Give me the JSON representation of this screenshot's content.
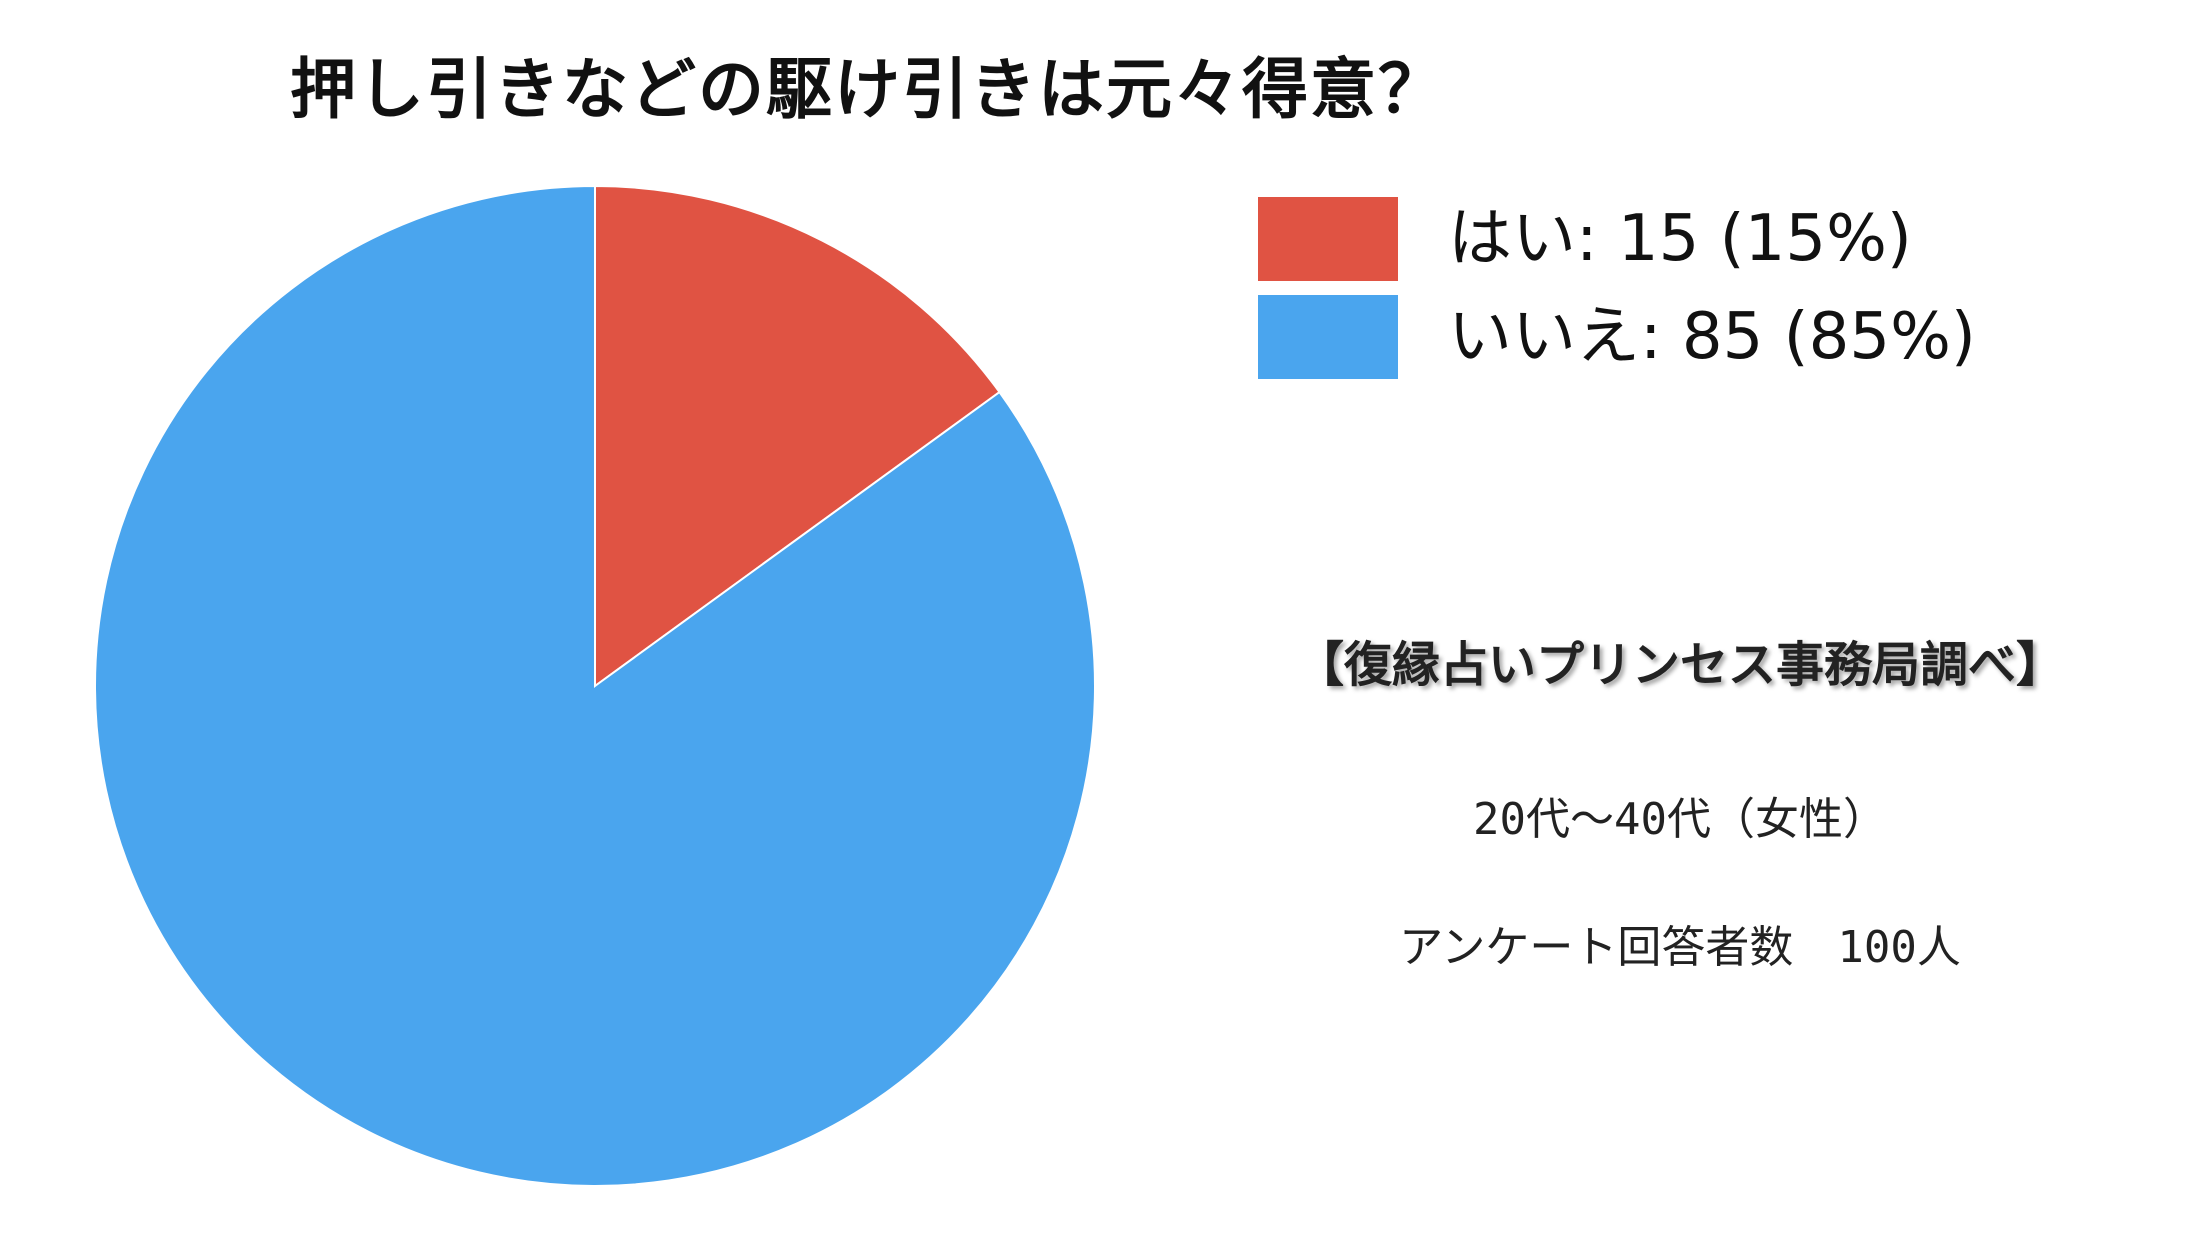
{
  "title": "押し引きなどの駆け引きは元々得意？",
  "chart_data": {
    "type": "pie",
    "title": "押し引きなどの駆け引きは元々得意？",
    "start_angle": "12 o'clock",
    "direction": "clockwise",
    "legend_position": "top-right",
    "slices": [
      {
        "label": "はい",
        "value": 15,
        "percent": 15,
        "color": "#E05343"
      },
      {
        "label": "いいえ",
        "value": 85,
        "percent": 85,
        "color": "#4AA5EE"
      }
    ]
  },
  "legend": [
    {
      "text": "はい: 15 (15%)",
      "color": "#E05343"
    },
    {
      "text": "いいえ: 85 (85%)",
      "color": "#4AA5EE"
    }
  ],
  "source": "【復縁占いプリンセス事務局調べ】",
  "notes": {
    "age": "20代〜40代（女性）",
    "respondents": "アンケート回答者数　100人"
  }
}
